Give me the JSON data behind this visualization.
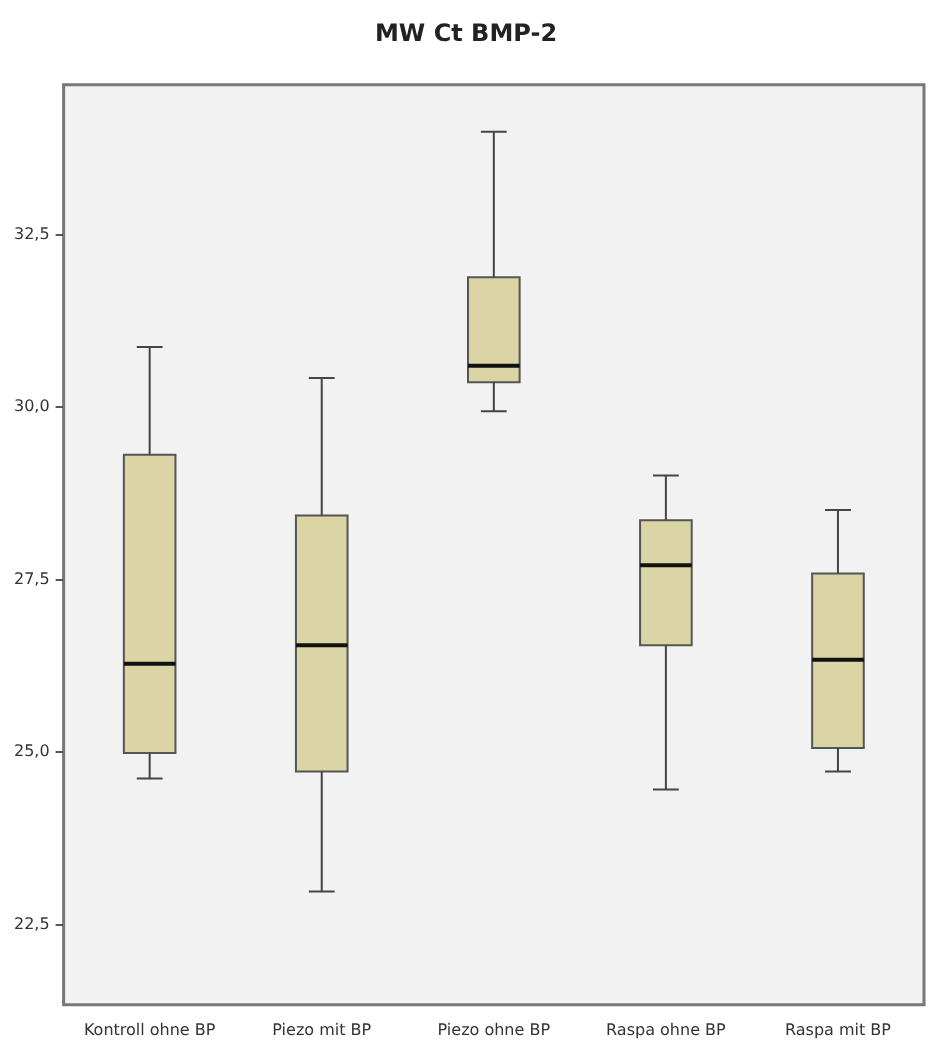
{
  "chart_data": {
    "type": "box",
    "title": "MW Ct BMP-2",
    "categories": [
      "Kontroll ohne BP",
      "Piezo mit BP",
      "Piezo ohne BP",
      "Raspa ohne BP",
      "Raspa mit BP"
    ],
    "color": "#dbd5a6",
    "boxes": [
      {
        "low": 24.62,
        "q1": 24.99,
        "median": 26.28,
        "q3": 29.31,
        "high": 30.87
      },
      {
        "low": 22.98,
        "q1": 24.72,
        "median": 26.55,
        "q3": 28.43,
        "high": 30.42
      },
      {
        "low": 29.94,
        "q1": 30.36,
        "median": 30.6,
        "q3": 31.88,
        "high": 33.99
      },
      {
        "low": 24.46,
        "q1": 26.55,
        "median": 27.71,
        "q3": 28.36,
        "high": 29.01
      },
      {
        "low": 24.72,
        "q1": 25.06,
        "median": 26.34,
        "q3": 27.59,
        "high": 28.51
      }
    ],
    "ylim": [
      21.34,
      34.67
    ],
    "yticks": [
      {
        "value": 22.5,
        "label": "22,5"
      },
      {
        "value": 25,
        "label": "25,0"
      },
      {
        "value": 27.5,
        "label": "27,5"
      },
      {
        "value": 30,
        "label": "30,0"
      },
      {
        "value": 32.5,
        "label": "32,5"
      }
    ],
    "grid": false,
    "legend": false
  }
}
